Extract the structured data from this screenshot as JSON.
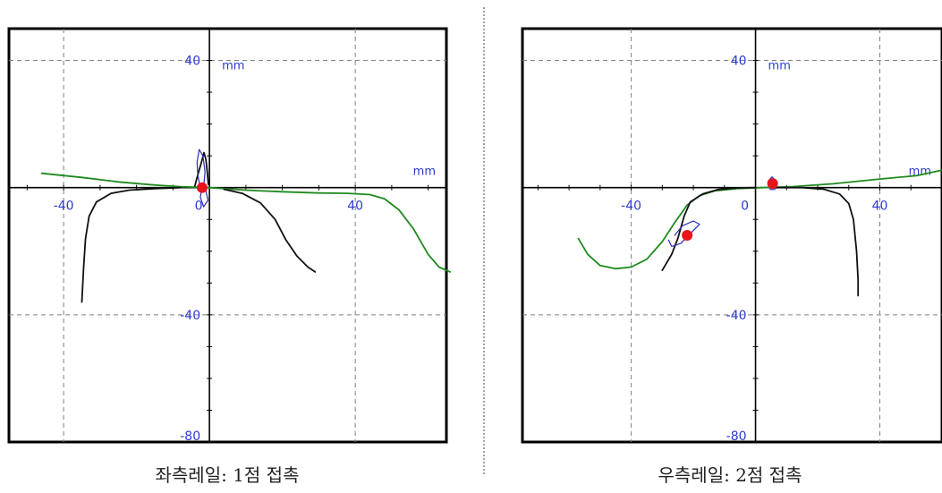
{
  "colors": {
    "contact_point": "#e8141c",
    "wheel_profile": "#1f8a1f",
    "rail_profile": "#111111",
    "flange_locus": "#2b2bb8",
    "axis_text": "#2b3ad0",
    "grid": "#808080",
    "divider": "#8a8a8a"
  },
  "chart_data": [
    {
      "type": "line",
      "caption": "좌측레일: 1점 접촉",
      "xlim": [
        -55,
        65
      ],
      "ylim": [
        -80,
        50
      ],
      "x_unit": "mm",
      "y_unit": "mm",
      "x_ticks": [
        {
          "value": -40,
          "label": "-40"
        },
        {
          "value": 0,
          "label": "0"
        },
        {
          "value": 40,
          "label": "40"
        }
      ],
      "y_ticks": [
        {
          "value": 40,
          "label": "40"
        },
        {
          "value": -40,
          "label": "-40"
        },
        {
          "value": -80,
          "label": "-80"
        }
      ],
      "grid": true,
      "series": [
        {
          "color_key": "wheel_profile",
          "points": [
            [
              -46,
              4.5
            ],
            [
              -35,
              3.2
            ],
            [
              -25,
              1.8
            ],
            [
              -15,
              0.8
            ],
            [
              -8,
              0.3
            ],
            [
              0,
              0
            ],
            [
              10,
              -0.8
            ],
            [
              20,
              -1.3
            ],
            [
              30,
              -1.7
            ],
            [
              38,
              -1.8
            ],
            [
              44,
              -2.2
            ],
            [
              48,
              -3.5
            ],
            [
              52,
              -7
            ],
            [
              56,
              -13
            ],
            [
              60,
              -21
            ],
            [
              63,
              -25
            ],
            [
              66,
              -26.5
            ]
          ]
        },
        {
          "color_key": "rail_profile",
          "points": [
            [
              -35,
              -36
            ],
            [
              -34.5,
              -25
            ],
            [
              -34,
              -16
            ],
            [
              -33,
              -9
            ],
            [
              -31,
              -4.5
            ],
            [
              -27,
              -1.8
            ],
            [
              -22,
              -0.8
            ],
            [
              -15,
              -0.3
            ],
            [
              -8,
              0
            ]
          ]
        },
        {
          "color_key": "rail_profile",
          "points": [
            [
              4,
              -0.5
            ],
            [
              9,
              -1.8
            ],
            [
              14,
              -4.8
            ],
            [
              18,
              -10
            ],
            [
              21,
              -16.5
            ],
            [
              24,
              -21.5
            ],
            [
              27,
              -25
            ],
            [
              29,
              -26.5
            ]
          ]
        },
        {
          "color_key": "rail_profile",
          "points": [
            [
              -4,
              0.5
            ],
            [
              -3.2,
              4
            ],
            [
              -2.2,
              8
            ],
            [
              -1.5,
              11
            ],
            [
              -1,
              9
            ],
            [
              -0.6,
              5
            ],
            [
              -0.3,
              1
            ]
          ]
        },
        {
          "color_key": "flange_locus",
          "points": [
            [
              -2.5,
              0
            ],
            [
              -3.2,
              4
            ],
            [
              -3.4,
              8
            ],
            [
              -2.8,
              12
            ],
            [
              -1.8,
              10
            ],
            [
              -1.2,
              5
            ],
            [
              -1.6,
              0
            ]
          ]
        },
        {
          "color_key": "flange_locus",
          "points": [
            [
              -2,
              0
            ],
            [
              -2.5,
              -3
            ],
            [
              -1.6,
              -6
            ],
            [
              -0.4,
              -4
            ],
            [
              -1,
              -1
            ]
          ]
        }
      ],
      "contact_points": [
        [
          -2,
          0
        ]
      ]
    },
    {
      "type": "line",
      "caption": "우측레일: 2점 접촉",
      "xlim": [
        -75,
        60
      ],
      "ylim": [
        -80,
        50
      ],
      "x_unit": "mm",
      "y_unit": "mm",
      "x_ticks": [
        {
          "value": -40,
          "label": "-40"
        },
        {
          "value": 0,
          "label": "0"
        },
        {
          "value": 40,
          "label": "40"
        }
      ],
      "y_ticks": [
        {
          "value": 40,
          "label": "40"
        },
        {
          "value": -40,
          "label": "-40"
        },
        {
          "value": -80,
          "label": "-80"
        }
      ],
      "grid": true,
      "series": [
        {
          "color_key": "wheel_profile",
          "points": [
            [
              -57,
              -16
            ],
            [
              -54,
              -21
            ],
            [
              -50,
              -24.5
            ],
            [
              -45,
              -25.5
            ],
            [
              -40,
              -25
            ],
            [
              -35,
              -22.5
            ],
            [
              -30,
              -17
            ],
            [
              -26,
              -11
            ],
            [
              -22,
              -5.5
            ],
            [
              -18,
              -2.5
            ],
            [
              -13,
              -1
            ],
            [
              -6,
              -0.3
            ],
            [
              2,
              0
            ],
            [
              12,
              0.3
            ],
            [
              25,
              1.2
            ],
            [
              40,
              2.7
            ],
            [
              52,
              3.8
            ],
            [
              60,
              5.5
            ]
          ]
        },
        {
          "color_key": "rail_profile",
          "points": [
            [
              -30,
              -26
            ],
            [
              -27,
              -21
            ],
            [
              -25,
              -16
            ],
            [
              -23,
              -9
            ],
            [
              -21,
              -4.5
            ],
            [
              -17,
              -2
            ],
            [
              -12,
              -0.6
            ],
            [
              -6,
              -0.1
            ],
            [
              0,
              0
            ]
          ]
        },
        {
          "color_key": "rail_profile",
          "points": [
            [
              6,
              0
            ],
            [
              15,
              0
            ],
            [
              22,
              -0.5
            ],
            [
              27,
              -2
            ],
            [
              30,
              -5
            ],
            [
              31.5,
              -10
            ],
            [
              32.5,
              -20
            ],
            [
              33,
              -29
            ],
            [
              33,
              -34
            ]
          ]
        },
        {
          "color_key": "flange_locus",
          "points": [
            [
              -26,
              -15
            ],
            [
              -23.5,
              -12
            ],
            [
              -20,
              -10.5
            ],
            [
              -18,
              -11.5
            ],
            [
              -21,
              -14.5
            ],
            [
              -24,
              -17.5
            ],
            [
              -27,
              -18.5
            ],
            [
              -28,
              -16.5
            ]
          ]
        },
        {
          "color_key": "flange_locus",
          "points": [
            [
              4,
              2
            ],
            [
              5.3,
              3.4
            ],
            [
              6.6,
              2
            ],
            [
              6.2,
              -0.6
            ],
            [
              4.8,
              -0.6
            ],
            [
              4,
              2
            ]
          ]
        }
      ],
      "contact_points": [
        [
          -22,
          -15
        ],
        [
          5.5,
          1.3
        ]
      ]
    }
  ]
}
